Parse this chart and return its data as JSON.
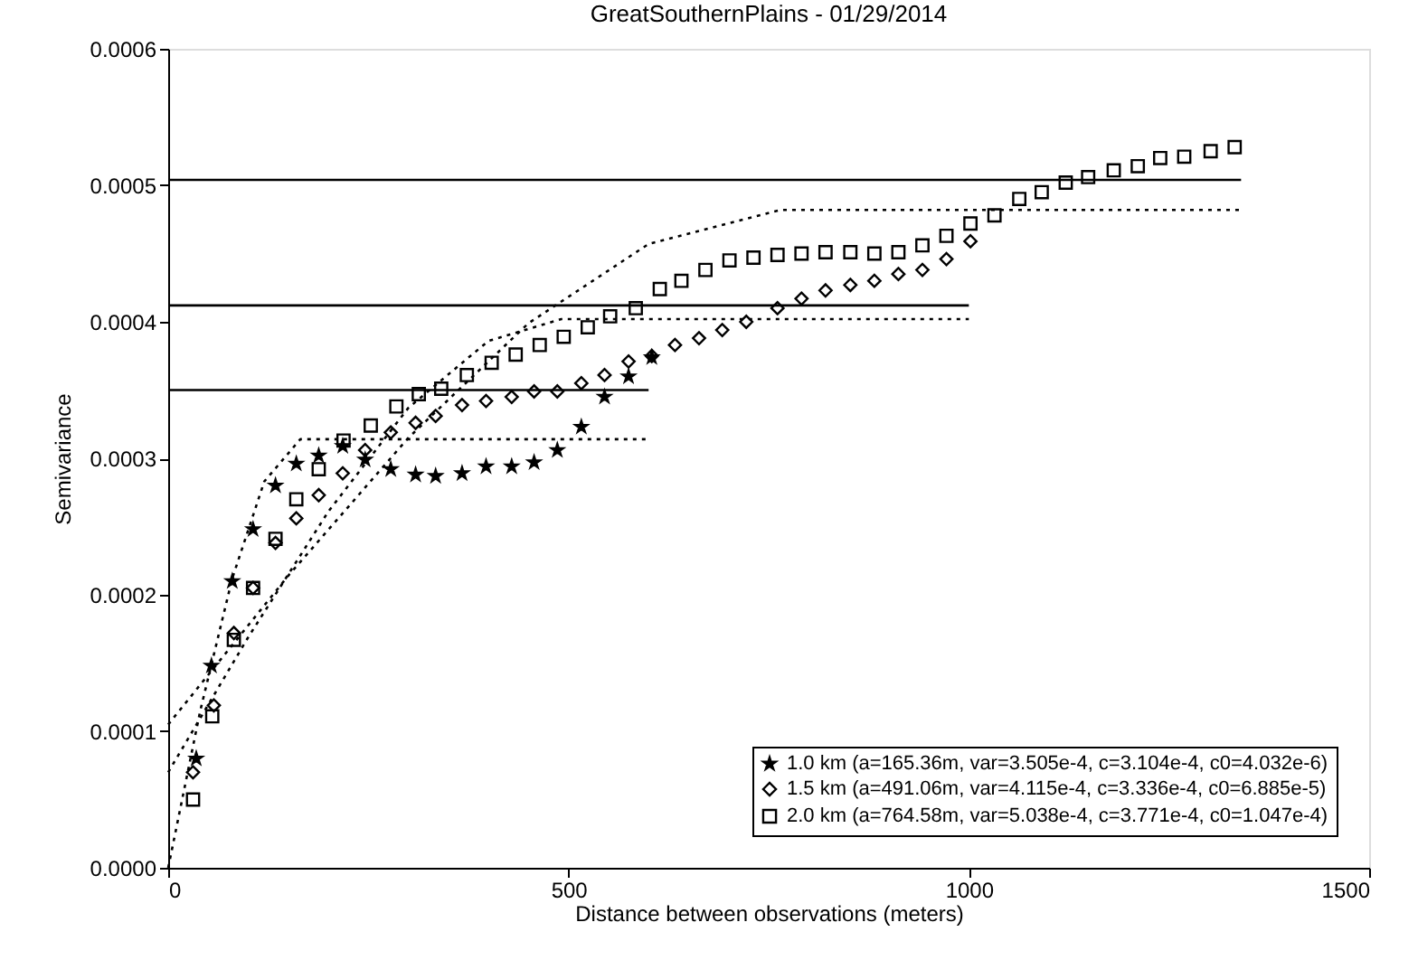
{
  "chart_data": {
    "type": "scatter",
    "title": "GreatSouthernPlains - 01/29/2014",
    "xlabel": "Distance between observations (meters)",
    "ylabel": "Semivariance",
    "xlim": [
      0,
      1500
    ],
    "xticks": [
      0,
      500,
      1000,
      1500
    ],
    "ylim": [
      0,
      0.0006
    ],
    "yticks": [
      {
        "value": 0,
        "label": "0.0000"
      },
      {
        "value": 0.0001,
        "label": "0.0001"
      },
      {
        "value": 0.0002,
        "label": "0.0002"
      },
      {
        "value": 0.0003,
        "label": "0.0003"
      },
      {
        "value": 0.0004,
        "label": "0.0004"
      },
      {
        "value": 0.0005,
        "label": "0.0005"
      },
      {
        "value": 0.0006,
        "label": "0.0006"
      }
    ],
    "grid": false,
    "legend": "bottom right",
    "series": [
      {
        "name": "1.0 km (a=165.36m, var=3.505e-4, c=3.104e-4, c0=4.032e-6)",
        "marker": "star",
        "color": "#000000",
        "x": [
          35,
          54,
          80,
          106,
          134,
          160,
          188,
          218,
          246,
          278,
          309,
          334,
          367,
          397,
          429,
          457,
          486,
          516,
          545,
          575,
          604
        ],
        "values": [
          8e-05,
          0.000148,
          0.00021,
          0.000248,
          0.00028,
          0.000296,
          0.000302,
          0.000309,
          0.000299,
          0.000292,
          0.000288,
          0.000287,
          0.000289,
          0.000294,
          0.000294,
          0.000297,
          0.000306,
          0.000323,
          0.000345,
          0.00036,
          0.000374
        ]
      },
      {
        "name": "1.5 km (a=491.06m, var=4.115e-4, c=3.336e-4, c0=6.885e-5)",
        "marker": "diamond",
        "color": "#000000",
        "x": [
          31,
          57,
          82,
          106,
          134,
          160,
          188,
          218,
          246,
          278,
          309,
          334,
          367,
          397,
          429,
          457,
          486,
          516,
          545,
          575,
          604,
          633,
          663,
          692,
          722,
          761,
          791,
          821,
          852,
          882,
          912,
          942,
          972,
          1002
        ],
        "values": [
          7e-05,
          0.000119,
          0.000172,
          0.000205,
          0.000238,
          0.000256,
          0.000273,
          0.000289,
          0.000306,
          0.000319,
          0.000326,
          0.000331,
          0.000339,
          0.000342,
          0.000345,
          0.000349,
          0.000349,
          0.000355,
          0.000361,
          0.000371,
          0.000375,
          0.000383,
          0.000388,
          0.000394,
          0.0004,
          0.00041,
          0.000417,
          0.000423,
          0.000427,
          0.00043,
          0.000435,
          0.000438,
          0.000446,
          0.000459
        ]
      },
      {
        "name": "2.0 km (a=764.58m, var=5.038e-4, c=3.771e-4, c0=1.047e-4)",
        "marker": "square",
        "color": "#000000",
        "x": [
          31,
          55,
          82,
          106,
          134,
          160,
          188,
          219,
          253,
          285,
          313,
          341,
          373,
          404,
          434,
          464,
          494,
          524,
          552,
          584,
          614,
          641,
          671,
          701,
          731,
          761,
          791,
          821,
          852,
          882,
          912,
          942,
          972,
          1002,
          1032,
          1063,
          1091,
          1121,
          1149,
          1181,
          1211,
          1239,
          1269,
          1302,
          1332
        ],
        "values": [
          5e-05,
          0.000111,
          0.000167,
          0.000205,
          0.000241,
          0.00027,
          0.000292,
          0.000313,
          0.000324,
          0.000338,
          0.000347,
          0.000351,
          0.000361,
          0.00037,
          0.000376,
          0.000383,
          0.000389,
          0.000396,
          0.000404,
          0.00041,
          0.000424,
          0.00043,
          0.000438,
          0.000445,
          0.000447,
          0.000449,
          0.00045,
          0.000451,
          0.000451,
          0.00045,
          0.000451,
          0.000456,
          0.000463,
          0.000472,
          0.000478,
          0.00049,
          0.000495,
          0.000502,
          0.000506,
          0.000511,
          0.000514,
          0.00052,
          0.000521,
          0.000525,
          0.000528
        ]
      },
      {
        "type": "line",
        "line_style": "dotted",
        "color": "#000000",
        "x": [
          0,
          40,
          80,
          120,
          165,
          600
        ],
        "values": [
          0,
          0.000115,
          0.000212,
          0.000283,
          0.000314,
          0.000314
        ]
      },
      {
        "type": "line",
        "line_style": "dotted",
        "color": "#000000",
        "x": [
          0,
          100,
          200,
          300,
          400,
          491,
          1000
        ],
        "values": [
          7e-05,
          0.000169,
          0.000261,
          0.000337,
          0.000386,
          0.000402,
          0.000402
        ]
      },
      {
        "type": "line",
        "line_style": "dotted",
        "color": "#000000",
        "x": [
          0,
          150,
          300,
          450,
          600,
          765,
          1340
        ],
        "values": [
          0.000105,
          0.000214,
          0.000315,
          0.000399,
          0.000457,
          0.000482,
          0.000482
        ]
      },
      {
        "type": "line",
        "line_style": "solid",
        "color": "#000000",
        "x": [
          0,
          600
        ],
        "values": [
          0.00035,
          0.00035
        ]
      },
      {
        "type": "line",
        "line_style": "solid",
        "color": "#000000",
        "x": [
          0,
          1000
        ],
        "values": [
          0.000412,
          0.000412
        ]
      },
      {
        "type": "line",
        "line_style": "solid",
        "color": "#000000",
        "x": [
          0,
          1340
        ],
        "values": [
          0.000504,
          0.000504
        ]
      }
    ]
  }
}
